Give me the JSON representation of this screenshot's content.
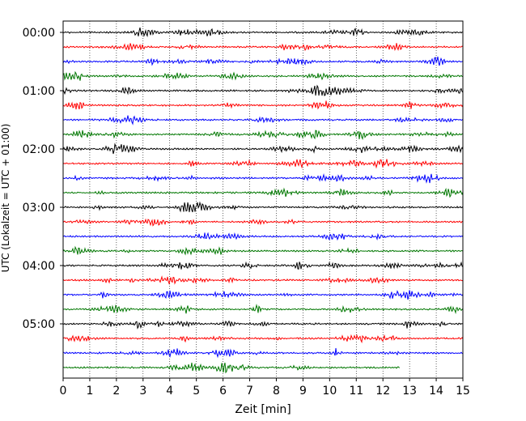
{
  "chart_data": {
    "type": "line",
    "title": "",
    "xlabel": "Zeit  [min]",
    "ylabel": "UTC (Lokalzeit = UTC + 01:00)",
    "xlim": [
      0,
      15
    ],
    "x_ticks": [
      0,
      1,
      2,
      3,
      4,
      5,
      6,
      7,
      8,
      9,
      10,
      11,
      12,
      13,
      14,
      15
    ],
    "x_tick_labels": [
      "0",
      "1",
      "2",
      "3",
      "4",
      "5",
      "6",
      "7",
      "8",
      "9",
      "10",
      "11",
      "12",
      "13",
      "14",
      "15"
    ],
    "y_tick_labels": [
      "00:00",
      "01:00",
      "02:00",
      "03:00",
      "04:00",
      "05:00"
    ],
    "trace_interval_min": 15,
    "trace_count": 24,
    "last_trace_end_min": 12.65,
    "trace_colors": [
      "#000000",
      "#ff0000",
      "#0000ff",
      "#007700"
    ],
    "grid": "vertical dotted lines at each minute"
  }
}
